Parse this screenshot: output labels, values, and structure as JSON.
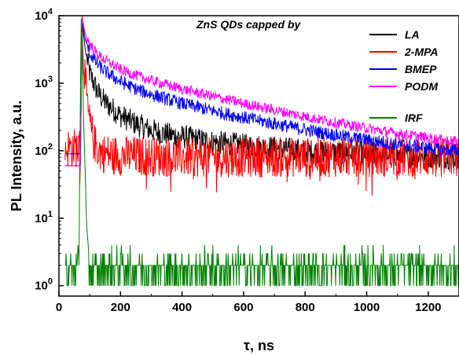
{
  "chart_data": {
    "type": "line",
    "xlabel": "τ, ns",
    "ylabel": "PL Intensity, a.u.",
    "yscale": "log",
    "xlim": [
      0,
      1300
    ],
    "ylim": [
      0.7,
      10000
    ],
    "xticks": [
      0,
      200,
      400,
      600,
      800,
      1000,
      1200
    ],
    "yticks": [
      {
        "base": "10",
        "exp": "0",
        "value": 1
      },
      {
        "base": "10",
        "exp": "1",
        "value": 10
      },
      {
        "base": "10",
        "exp": "2",
        "value": 100
      },
      {
        "base": "10",
        "exp": "3",
        "value": 1000
      },
      {
        "base": "10",
        "exp": "4",
        "value": 10000
      }
    ],
    "legend_title": "ZnS QDs capped by",
    "legend_position": "top-right",
    "series": [
      {
        "name": "LA",
        "color": "#000000",
        "x": [
          20,
          60,
          70,
          75,
          85,
          100,
          125,
          150,
          200,
          250,
          300,
          350,
          400,
          500,
          600,
          700,
          800,
          900,
          1000,
          1100,
          1200,
          1300
        ],
        "y": [
          60,
          60,
          60,
          9000,
          3200,
          1400,
          750,
          520,
          330,
          250,
          200,
          175,
          160,
          135,
          120,
          110,
          100,
          95,
          90,
          85,
          82,
          80
        ]
      },
      {
        "name": "2-MPA",
        "color": "#ff0000",
        "x": [
          20,
          60,
          70,
          75,
          80,
          90,
          100,
          115,
          130,
          150,
          200,
          400,
          600,
          800,
          1000,
          1200,
          1300
        ],
        "y": [
          110,
          110,
          110,
          9500,
          2500,
          600,
          250,
          130,
          100,
          90,
          85,
          80,
          80,
          80,
          80,
          80,
          80
        ]
      },
      {
        "name": "BMEP",
        "color": "#0000ff",
        "x": [
          20,
          60,
          70,
          75,
          85,
          100,
          125,
          150,
          200,
          250,
          300,
          400,
          500,
          600,
          700,
          800,
          900,
          1000,
          1100,
          1200,
          1300
        ],
        "y": [
          90,
          90,
          90,
          9000,
          4500,
          2800,
          1900,
          1500,
          1050,
          820,
          680,
          500,
          390,
          310,
          250,
          205,
          170,
          145,
          125,
          110,
          100
        ]
      },
      {
        "name": "PODM",
        "color": "#ff00ff",
        "x": [
          20,
          60,
          70,
          75,
          85,
          100,
          125,
          150,
          200,
          250,
          300,
          400,
          500,
          600,
          700,
          800,
          900,
          1000,
          1100,
          1200,
          1300
        ],
        "y": [
          60,
          60,
          60,
          9500,
          5500,
          3800,
          2700,
          2200,
          1600,
          1300,
          1100,
          820,
          640,
          500,
          400,
          320,
          260,
          215,
          180,
          155,
          135
        ]
      },
      {
        "name": "IRF",
        "color": "#008000",
        "x": [
          20,
          60,
          65,
          70,
          72,
          75,
          80,
          90,
          100,
          200,
          400,
          600,
          800,
          1000,
          1200,
          1300
        ],
        "y": [
          2,
          2,
          2,
          800,
          9800,
          6000,
          300,
          8,
          2,
          2,
          2,
          2,
          2,
          2,
          2,
          2
        ]
      }
    ]
  }
}
